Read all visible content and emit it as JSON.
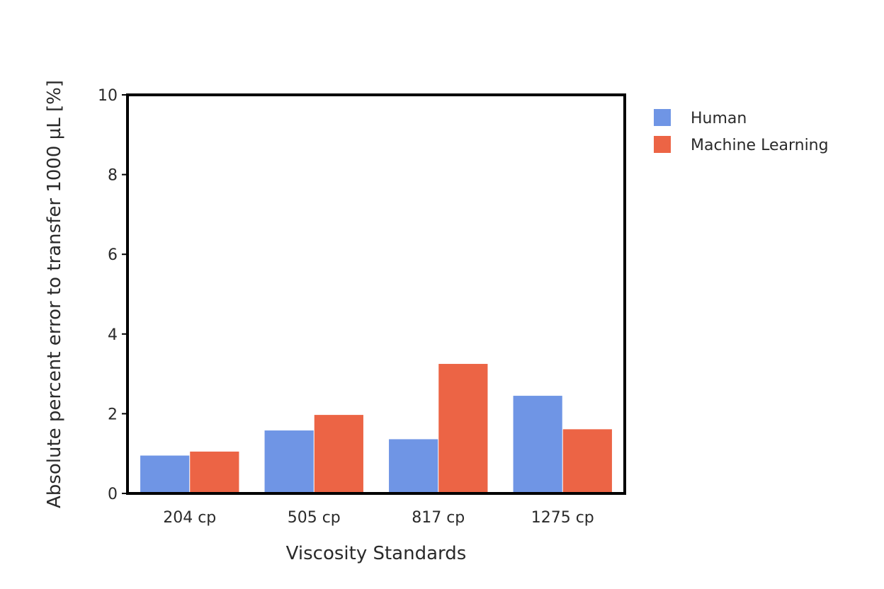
{
  "chart_data": {
    "type": "bar",
    "title": "",
    "xlabel": "Viscosity Standards",
    "ylabel": "Absolute percent error to transfer 1000 µL [%]",
    "categories": [
      "204 cp",
      "505 cp",
      "817 cp",
      "1275 cp"
    ],
    "series": [
      {
        "name": "Human",
        "color": "#6f95e5",
        "values": [
          0.95,
          1.58,
          1.36,
          2.45
        ]
      },
      {
        "name": "Machine Learning",
        "color": "#ec6445",
        "values": [
          1.05,
          1.97,
          3.25,
          1.61
        ]
      }
    ],
    "ylim": [
      0,
      10
    ],
    "yticks": [
      0,
      2,
      4,
      6,
      8,
      10
    ],
    "grid": false,
    "legend_position": "top-right"
  }
}
